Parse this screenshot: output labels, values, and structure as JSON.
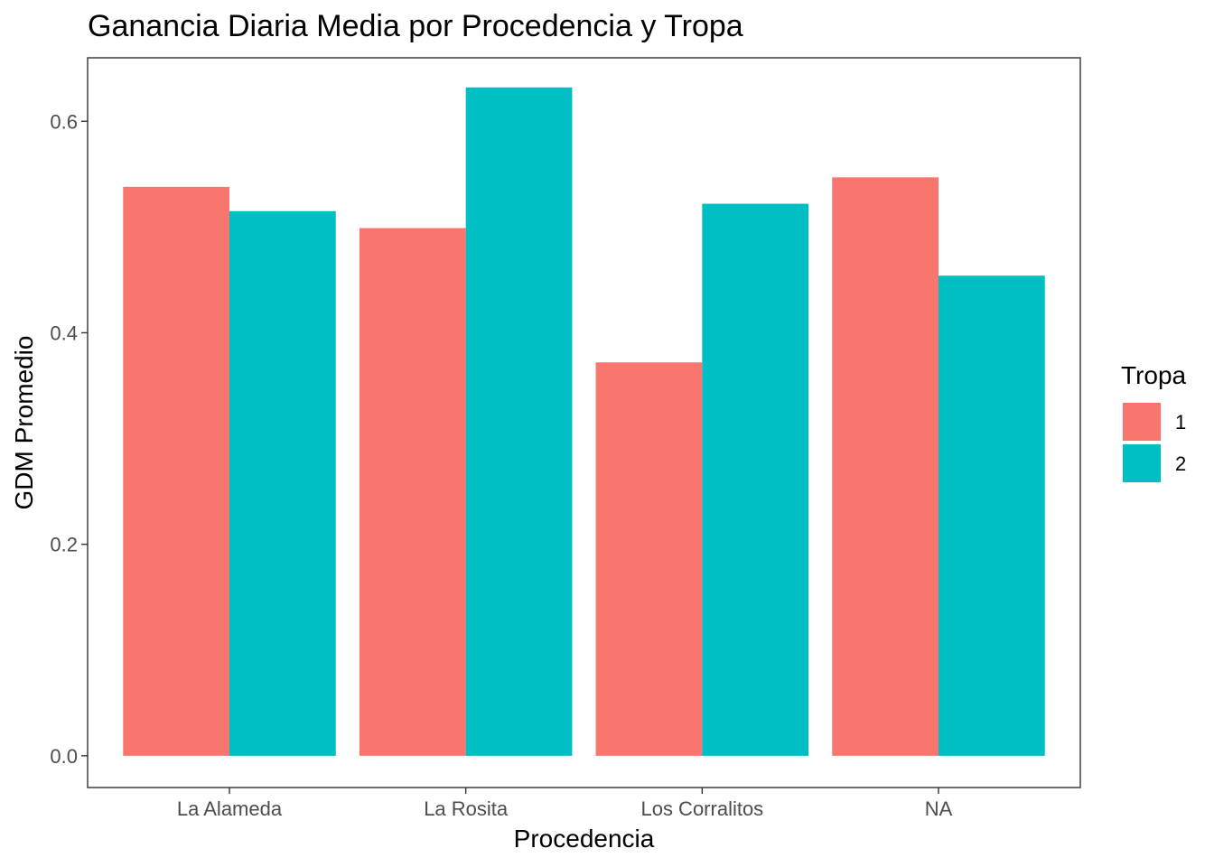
{
  "chart_data": {
    "type": "bar",
    "title": "Ganancia Diaria Media por Procedencia y Tropa",
    "xlabel": "Procedencia",
    "ylabel": "GDM Promedio",
    "categories": [
      "La Alameda",
      "La Rosita",
      "Los Corralitos",
      "NA"
    ],
    "series": [
      {
        "name": "1",
        "color": "#F8766D",
        "values": [
          0.538,
          0.499,
          0.372,
          0.547
        ]
      },
      {
        "name": "2",
        "color": "#00BFC4",
        "values": [
          0.515,
          0.632,
          0.522,
          0.454
        ]
      }
    ],
    "ylim": [
      -0.03,
      0.66
    ],
    "yticks": [
      0.0,
      0.2,
      0.4,
      0.6
    ],
    "ytick_labels": [
      "0.0",
      "0.2",
      "0.4",
      "0.6"
    ],
    "grid": false,
    "legend": {
      "title": "Tropa",
      "position": "right"
    }
  }
}
